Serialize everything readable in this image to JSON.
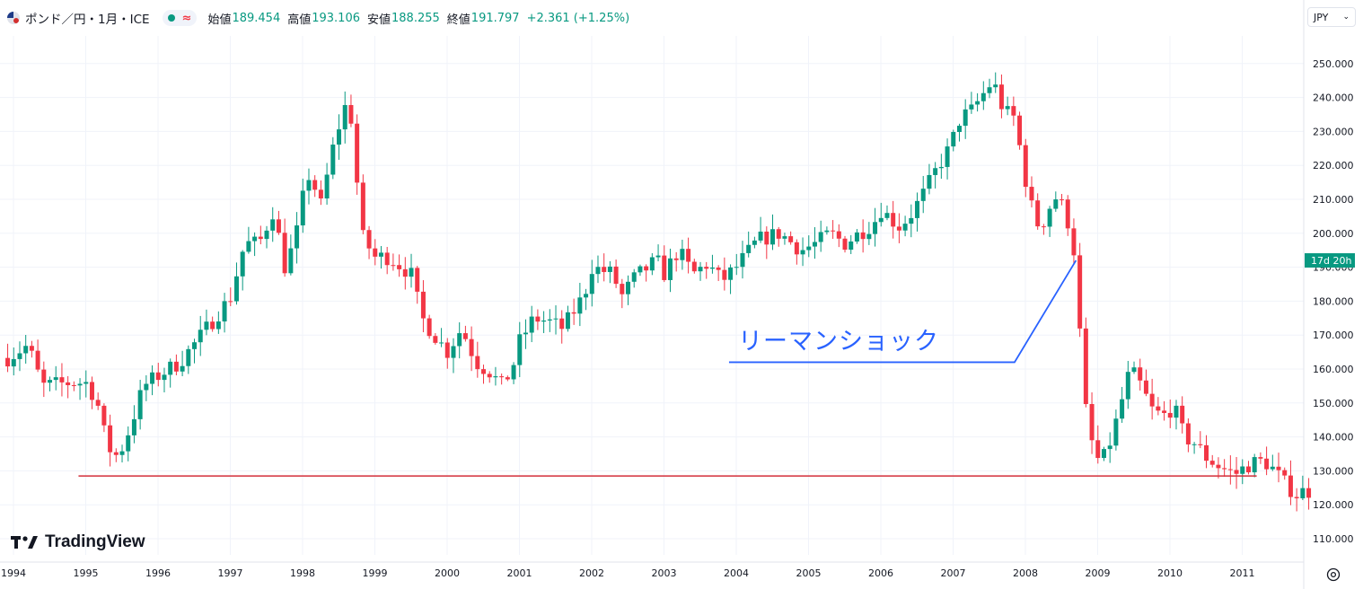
{
  "header": {
    "symbol": "ポンド／円・1月・ICE",
    "open_label": "始値",
    "open": "189.454",
    "high_label": "高値",
    "high": "193.106",
    "low_label": "安値",
    "low": "188.255",
    "close_label": "終値",
    "close": "191.797",
    "change": "+2.361 (+1.25%)"
  },
  "currency": "JPY",
  "countdown": "17d 20h",
  "logo_text": "TradingView",
  "annotation": "リーマンショック",
  "colors": {
    "up": "#089981",
    "down": "#f23645",
    "support_line": "#d32f3a",
    "annotation": "#2962ff"
  },
  "icons": [
    "chevron-down-icon",
    "settings-icon",
    "tradingview-logo-icon"
  ],
  "chart_data": {
    "type": "candlestick",
    "interval": "1M",
    "y_axis": {
      "min": 110,
      "max": 250,
      "ticks": [
        "110.000",
        "120.000",
        "130.000",
        "140.000",
        "150.000",
        "160.000",
        "170.000",
        "180.000",
        "190.000",
        "200.000",
        "210.000",
        "220.000",
        "230.000",
        "240.000",
        "250.000"
      ],
      "position": "right"
    },
    "x_axis": {
      "ticks": [
        "1994",
        "1995",
        "1996",
        "1997",
        "1998",
        "1999",
        "2000",
        "2001",
        "2002",
        "2003",
        "2004",
        "2005",
        "2006",
        "2007",
        "2008",
        "2009",
        "2010",
        "2011"
      ]
    },
    "anchors": [
      [
        1993.9,
        163
      ],
      [
        1994.2,
        167
      ],
      [
        1994.4,
        155
      ],
      [
        1994.8,
        156
      ],
      [
        1995.0,
        156
      ],
      [
        1995.15,
        151
      ],
      [
        1995.3,
        137
      ],
      [
        1995.45,
        134
      ],
      [
        1995.6,
        142
      ],
      [
        1995.8,
        155
      ],
      [
        1996.0,
        158
      ],
      [
        1996.3,
        162
      ],
      [
        1996.6,
        170
      ],
      [
        1997.0,
        181
      ],
      [
        1997.2,
        197
      ],
      [
        1997.4,
        197
      ],
      [
        1997.6,
        207
      ],
      [
        1997.75,
        190
      ],
      [
        1997.9,
        198
      ],
      [
        1998.0,
        210
      ],
      [
        1998.1,
        218
      ],
      [
        1998.25,
        208
      ],
      [
        1998.45,
        228
      ],
      [
        1998.6,
        238
      ],
      [
        1998.7,
        232
      ],
      [
        1998.8,
        200
      ],
      [
        1999.0,
        193
      ],
      [
        1999.2,
        193
      ],
      [
        1999.5,
        188
      ],
      [
        1999.65,
        175
      ],
      [
        2000.0,
        165
      ],
      [
        2000.2,
        172
      ],
      [
        2000.4,
        162
      ],
      [
        2000.6,
        159
      ],
      [
        2000.75,
        155
      ],
      [
        2000.9,
        160
      ],
      [
        2001.0,
        168
      ],
      [
        2001.2,
        175
      ],
      [
        2001.4,
        174
      ],
      [
        2001.6,
        172
      ],
      [
        2001.9,
        182
      ],
      [
        2002.0,
        190
      ],
      [
        2002.3,
        188
      ],
      [
        2002.4,
        181
      ],
      [
        2002.6,
        187
      ],
      [
        2002.9,
        192
      ],
      [
        2003.0,
        188
      ],
      [
        2003.2,
        195
      ],
      [
        2003.4,
        188
      ],
      [
        2003.6,
        191
      ],
      [
        2003.8,
        186
      ],
      [
        2004.0,
        190
      ],
      [
        2004.3,
        198
      ],
      [
        2004.6,
        200
      ],
      [
        2004.9,
        195
      ],
      [
        2005.1,
        197
      ],
      [
        2005.3,
        200
      ],
      [
        2005.5,
        197
      ],
      [
        2005.9,
        203
      ],
      [
        2006.0,
        207
      ],
      [
        2006.25,
        202
      ],
      [
        2006.4,
        205
      ],
      [
        2006.6,
        212
      ],
      [
        2006.8,
        220
      ],
      [
        2006.95,
        225
      ],
      [
        2007.1,
        234
      ],
      [
        2007.25,
        236
      ],
      [
        2007.45,
        242
      ],
      [
        2007.55,
        245
      ],
      [
        2007.7,
        236
      ],
      [
        2007.85,
        234
      ],
      [
        2007.95,
        222
      ],
      [
        2008.05,
        210
      ],
      [
        2008.2,
        201
      ],
      [
        2008.4,
        211
      ],
      [
        2008.55,
        207
      ],
      [
        2008.7,
        192
      ],
      [
        2008.8,
        152
      ],
      [
        2008.95,
        135
      ],
      [
        2009.05,
        132
      ],
      [
        2009.2,
        140
      ],
      [
        2009.45,
        160
      ],
      [
        2009.6,
        155
      ],
      [
        2009.75,
        148
      ],
      [
        2009.9,
        146
      ],
      [
        2010.05,
        149
      ],
      [
        2010.2,
        140
      ],
      [
        2010.35,
        138
      ],
      [
        2010.5,
        134
      ],
      [
        2010.7,
        131
      ],
      [
        2010.9,
        129
      ],
      [
        2011.1,
        132
      ],
      [
        2011.3,
        133
      ],
      [
        2011.45,
        130
      ],
      [
        2011.6,
        126
      ],
      [
        2011.75,
        123
      ],
      [
        2011.85,
        124
      ]
    ],
    "horizontal_line": {
      "y": 128.5,
      "x_from": 1994.9,
      "x_to": 2011.2
    },
    "trend_line": {
      "points": [
        [
          2003.9,
          162
        ],
        [
          2007.85,
          162
        ],
        [
          2008.7,
          192
        ]
      ]
    }
  }
}
